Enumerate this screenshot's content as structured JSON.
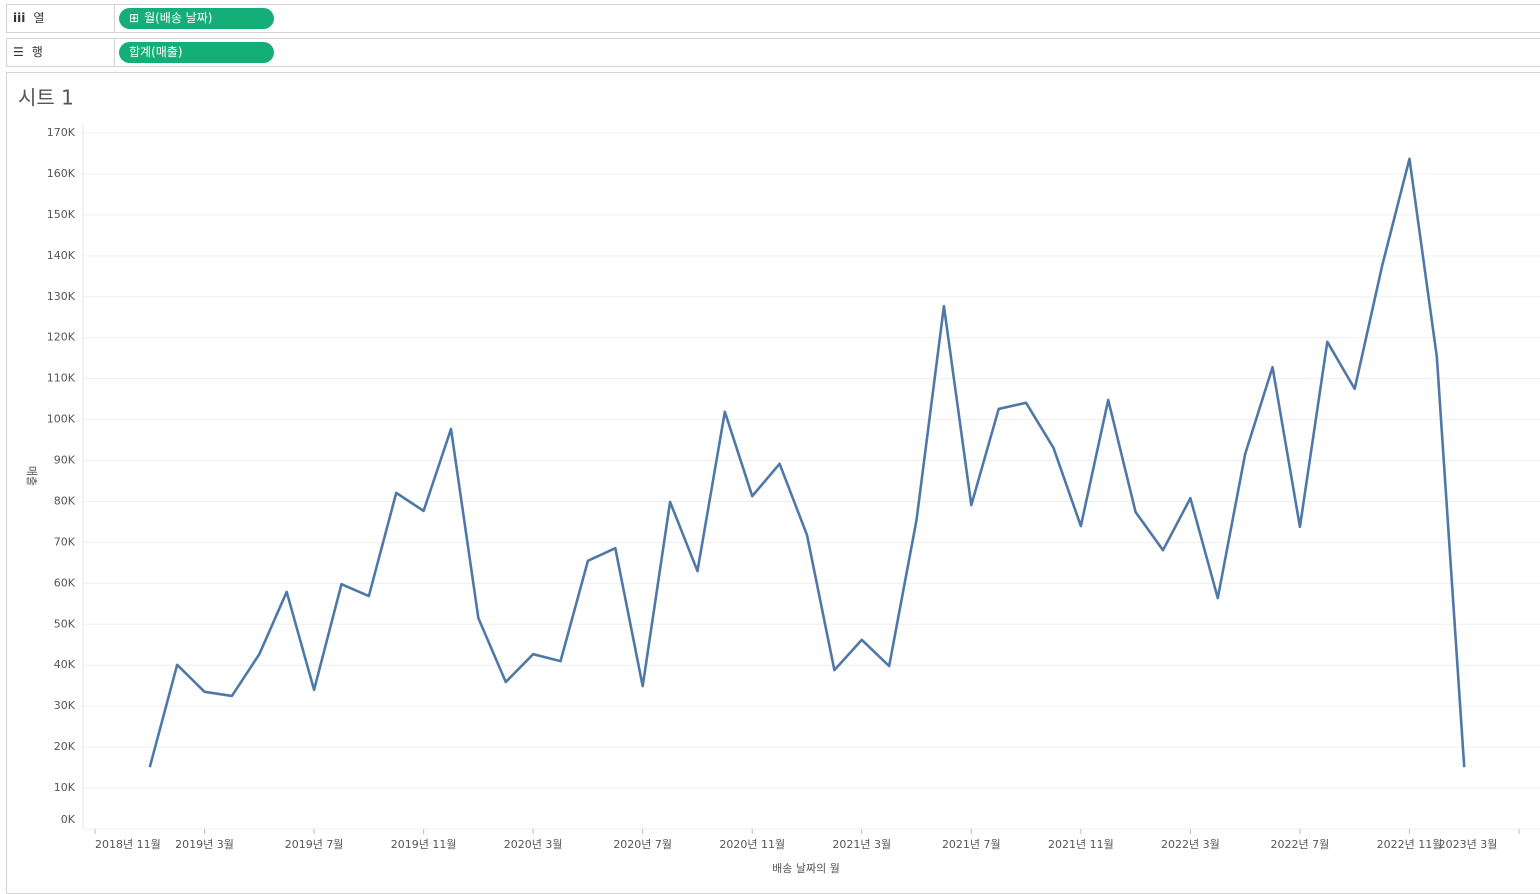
{
  "shelves": {
    "columns": {
      "label": "열",
      "pill": "월(배송 날짜)"
    },
    "rows": {
      "label": "행",
      "pill": "합계(매출)"
    }
  },
  "chart_data": {
    "type": "line",
    "title": "시트 1",
    "x_label": "배송 날짜의 월",
    "y_label": "매출",
    "x": [
      "2019-01",
      "2019-02",
      "2019-03",
      "2019-04",
      "2019-05",
      "2019-06",
      "2019-07",
      "2019-08",
      "2019-09",
      "2019-10",
      "2019-11",
      "2019-12",
      "2020-01",
      "2020-02",
      "2020-03",
      "2020-04",
      "2020-05",
      "2020-06",
      "2020-07",
      "2020-08",
      "2020-09",
      "2020-10",
      "2020-11",
      "2020-12",
      "2021-01",
      "2021-02",
      "2021-03",
      "2021-04",
      "2021-05",
      "2021-06",
      "2021-07",
      "2021-08",
      "2021-09",
      "2021-10",
      "2021-11",
      "2021-12",
      "2022-01",
      "2022-02",
      "2022-03",
      "2022-04",
      "2022-05",
      "2022-06",
      "2022-07",
      "2022-08",
      "2022-09",
      "2022-10",
      "2022-11",
      "2022-12",
      "2023-01"
    ],
    "series": [
      {
        "name": "매출",
        "color": "#4e79a7",
        "values": [
          15100,
          40100,
          33500,
          32500,
          42700,
          57900,
          34000,
          59800,
          56900,
          82100,
          77700,
          97700,
          51500,
          35900,
          42700,
          41000,
          65500,
          68600,
          34900,
          79900,
          63000,
          101900,
          81300,
          89200,
          71800,
          38800,
          46200,
          39800,
          75500,
          127700,
          79100,
          102600,
          104100,
          93100,
          74000,
          104800,
          77400,
          68100,
          80800,
          56400,
          91600,
          112800,
          73800,
          119000,
          107500,
          137500,
          163700,
          115300,
          15100
        ]
      }
    ],
    "xlim": [
      "2018-11",
      "2023-03"
    ],
    "xticks": [
      {
        "value": "2018-11",
        "label": "2018년 11월"
      },
      {
        "value": "2019-03",
        "label": "2019년 3월"
      },
      {
        "value": "2019-07",
        "label": "2019년 7월"
      },
      {
        "value": "2019-11",
        "label": "2019년 11월"
      },
      {
        "value": "2020-03",
        "label": "2020년 3월"
      },
      {
        "value": "2020-07",
        "label": "2020년 7월"
      },
      {
        "value": "2020-11",
        "label": "2020년 11월"
      },
      {
        "value": "2021-03",
        "label": "2021년 3월"
      },
      {
        "value": "2021-07",
        "label": "2021년 7월"
      },
      {
        "value": "2021-11",
        "label": "2021년 11월"
      },
      {
        "value": "2022-03",
        "label": "2022년 3월"
      },
      {
        "value": "2022-07",
        "label": "2022년 7월"
      },
      {
        "value": "2022-11",
        "label": "2022년 11월"
      },
      {
        "value": "2023-03",
        "label": "2023년 3월"
      }
    ],
    "ylim": [
      0,
      170000
    ],
    "yticks": [
      {
        "value": 0,
        "label": "0K"
      },
      {
        "value": 10000,
        "label": "10K"
      },
      {
        "value": 20000,
        "label": "20K"
      },
      {
        "value": 30000,
        "label": "30K"
      },
      {
        "value": 40000,
        "label": "40K"
      },
      {
        "value": 50000,
        "label": "50K"
      },
      {
        "value": 60000,
        "label": "60K"
      },
      {
        "value": 70000,
        "label": "70K"
      },
      {
        "value": 80000,
        "label": "80K"
      },
      {
        "value": 90000,
        "label": "90K"
      },
      {
        "value": 100000,
        "label": "100K"
      },
      {
        "value": 110000,
        "label": "110K"
      },
      {
        "value": 120000,
        "label": "120K"
      },
      {
        "value": 130000,
        "label": "130K"
      },
      {
        "value": 140000,
        "label": "140K"
      },
      {
        "value": 150000,
        "label": "150K"
      },
      {
        "value": 160000,
        "label": "160K"
      },
      {
        "value": 170000,
        "label": "170K"
      }
    ],
    "grid": true
  }
}
